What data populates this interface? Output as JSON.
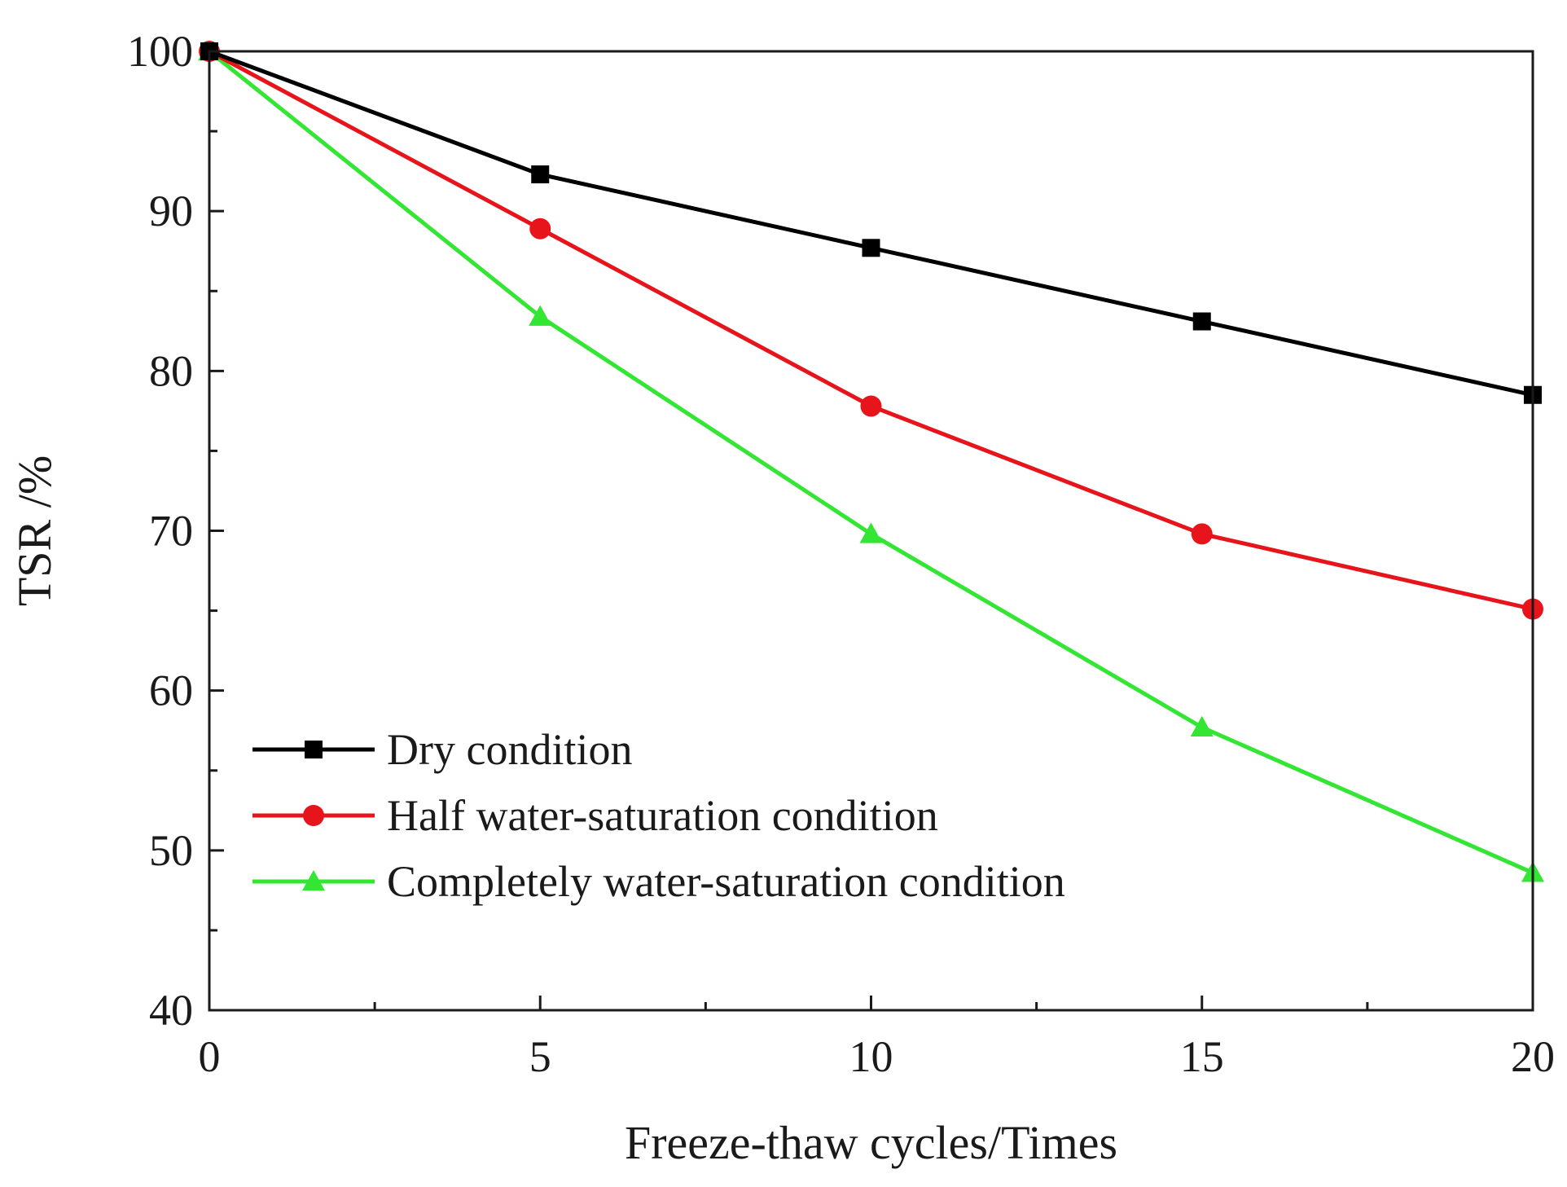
{
  "chart_data": {
    "type": "line",
    "title": "",
    "xlabel": "Freeze-thaw cycles/Times",
    "ylabel": "TSR /%",
    "xlim": [
      0,
      20
    ],
    "ylim": [
      40,
      100
    ],
    "xticks": [
      "0",
      "5",
      "10",
      "15",
      "20"
    ],
    "xtick_values": [
      0,
      5,
      10,
      15,
      20
    ],
    "yticks": [
      "40",
      "50",
      "60",
      "70",
      "80",
      "90",
      "100"
    ],
    "ytick_values": [
      40,
      50,
      60,
      70,
      80,
      90,
      100
    ],
    "grid": false,
    "legend_position": "lower-left",
    "x": [
      0,
      5,
      10,
      15,
      20
    ],
    "series": [
      {
        "name": "Dry condition",
        "color": "#000000",
        "marker": "square",
        "values": [
          100,
          92.3,
          87.7,
          83.1,
          78.5
        ]
      },
      {
        "name": "Half water-saturation condition",
        "color": "#e8141b",
        "marker": "circle",
        "values": [
          100,
          88.9,
          77.8,
          69.8,
          65.1
        ]
      },
      {
        "name": "Completely water-saturation condition",
        "color": "#33e633",
        "marker": "triangle",
        "values": [
          100,
          83.4,
          69.8,
          57.7,
          48.6
        ]
      }
    ]
  }
}
